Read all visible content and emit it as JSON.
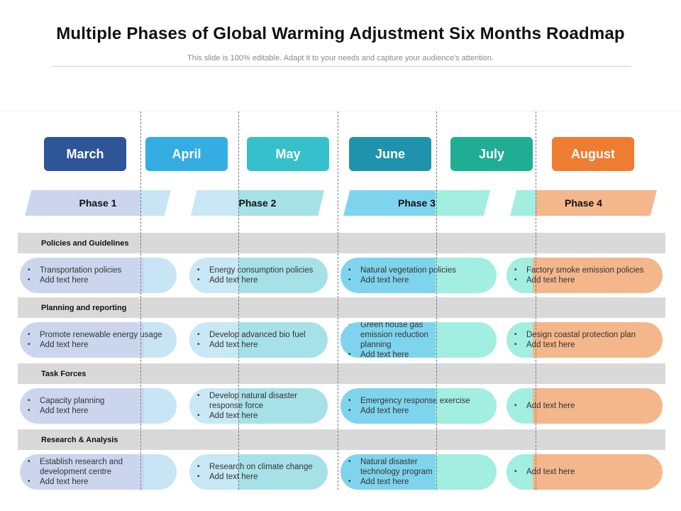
{
  "header": {
    "title": "Multiple Phases of Global Warming Adjustment Six Months Roadmap",
    "subtitle": "This slide is 100% editable. Adapt it to your needs and capture your audience's attention."
  },
  "colors": {
    "march": "#2e5597",
    "april": "#33ade2",
    "may": "#35c0cc",
    "june": "#1f93ad",
    "july": "#1fae94",
    "august": "#ee7d31",
    "phase1_a": "#cbd6ee",
    "phase1_b": "#c7e5f4",
    "phase2_a": "#c7e8f4",
    "phase2_b": "#a7e1e8",
    "phase3_a": "#7fd4ed",
    "phase3_b": "#a2eee1",
    "phase4_a": "#a2eee1",
    "phase4_b": "#f4b68b",
    "section": "#d9d9d9"
  },
  "months": [
    "March",
    "April",
    "May",
    "June",
    "July",
    "August"
  ],
  "phases": [
    "Phase 1",
    "Phase 2",
    "Phase 3",
    "Phase 4"
  ],
  "sections": [
    {
      "title": "Policies and Guidelines",
      "cells": [
        [
          "Transportation policies",
          "Add text here"
        ],
        [
          "Energy consumption policies",
          "Add text here"
        ],
        [
          "Natural vegetation policies",
          "Add text here"
        ],
        [
          "Factory smoke emission policies",
          "Add text here"
        ]
      ]
    },
    {
      "title": "Planning  and reporting",
      "cells": [
        [
          "Promote renewable energy usage",
          "Add text here"
        ],
        [
          "Develop advanced bio fuel",
          "Add text here"
        ],
        [
          "Green house gas emission reduction planning",
          "Add text here"
        ],
        [
          "Design coastal protection plan",
          "Add text here"
        ]
      ]
    },
    {
      "title": "Task Forces",
      "cells": [
        [
          "Capacity planning",
          "Add text here"
        ],
        [
          "Develop natural disaster response force",
          "Add text here"
        ],
        [
          "Emergency response exercise",
          "Add text here"
        ],
        [
          "Add text here"
        ]
      ]
    },
    {
      "title": "Research & Analysis",
      "cells": [
        [
          "Establish research and development centre",
          "Add text here"
        ],
        [
          "Research on climate change",
          "Add text here"
        ],
        [
          "Natural disaster technology program",
          "Add text here"
        ],
        [
          "Add text here"
        ]
      ]
    }
  ]
}
